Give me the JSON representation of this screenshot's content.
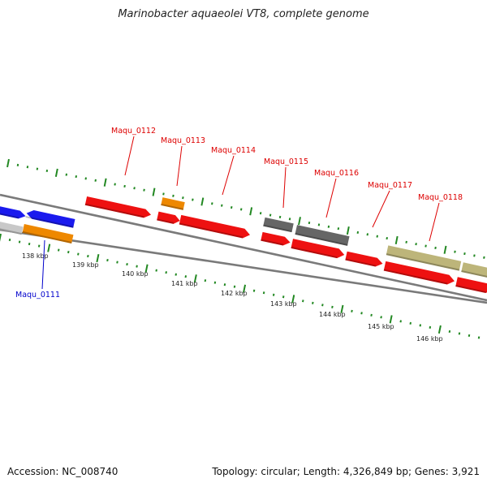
{
  "title": "Marinobacter aquaeolei VT8, complete genome",
  "footer": {
    "accession": "Accession: NC_008740",
    "summary": "Topology: circular; Length: 4,326,849 bp; Genes: 3,921"
  },
  "colors": {
    "cds": "#ee1111",
    "blue": "#1a1aee",
    "orange": "#ee8800",
    "grey": "#666666",
    "khaki": "#bdb57a",
    "light_grey": "#c8c8c8",
    "tick": "#228822",
    "label_red": "#dd0000",
    "label_blue": "#0000cc",
    "backbone": "#7a7a7a"
  },
  "ticks": [
    "138 kbp",
    "139 kbp",
    "140 kbp",
    "141 kbp",
    "142 kbp",
    "143 kbp",
    "144 kbp",
    "145 kbp",
    "146 kbp"
  ],
  "gene_labels": [
    {
      "text": "Maqu_0111",
      "color": "blue"
    },
    {
      "text": "Maqu_0112",
      "color": "red"
    },
    {
      "text": "Maqu_0113",
      "color": "red"
    },
    {
      "text": "Maqu_0114",
      "color": "red"
    },
    {
      "text": "Maqu_0115",
      "color": "red"
    },
    {
      "text": "Maqu_0116",
      "color": "red"
    },
    {
      "text": "Maqu_0117",
      "color": "red"
    },
    {
      "text": "Maqu_0118",
      "color": "red"
    }
  ]
}
